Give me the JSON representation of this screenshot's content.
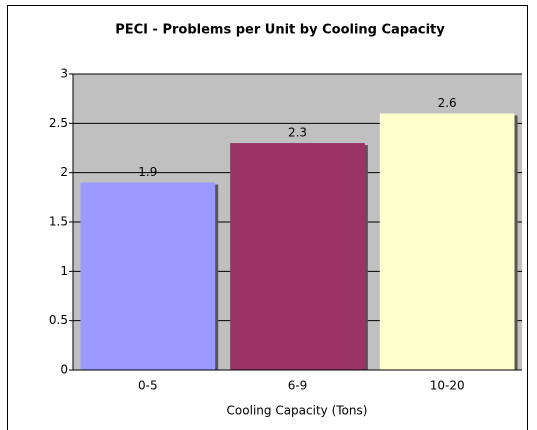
{
  "chart_data": {
    "type": "bar",
    "title": "PECI - Problems per Unit by Cooling Capacity",
    "categories": [
      "0-5",
      "6-9",
      "10-20"
    ],
    "values": [
      1.9,
      2.3,
      2.6
    ],
    "colors": [
      "#9999ff",
      "#993366",
      "#ffffcc"
    ],
    "x_label": "Cooling Capacity (Tons)",
    "ylim": [
      0,
      3
    ],
    "yticks": [
      0,
      0.5,
      1,
      1.5,
      2,
      2.5,
      3
    ],
    "grid": true
  }
}
